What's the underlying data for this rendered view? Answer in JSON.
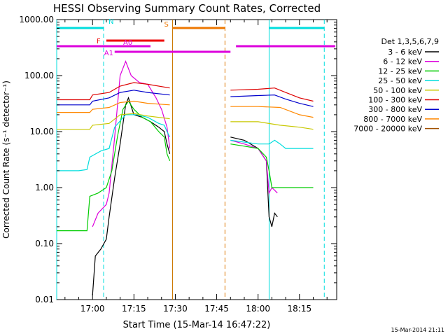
{
  "chart_data": {
    "type": "line",
    "title": "HESSI Observing Summary Count Rates, Corrected",
    "xlabel": "Start Time (15-Mar-14 16:47:22)",
    "ylabel": "Corrected Count Rate (s⁻¹ detector⁻¹)",
    "timestamp": "15-Mar-2014 21:11",
    "x_unit": "minutes of day",
    "xlim": [
      "16:47",
      "18:28"
    ],
    "ylim": [
      0.01,
      1000
    ],
    "y_scale": "log",
    "x_ticks": [
      {
        "t": "17:00",
        "label": "17:00"
      },
      {
        "t": "17:15",
        "label": "17:15"
      },
      {
        "t": "17:30",
        "label": "17:30"
      },
      {
        "t": "17:45",
        "label": "17:45"
      },
      {
        "t": "18:00",
        "label": "18:00"
      },
      {
        "t": "18:15",
        "label": "18:15"
      }
    ],
    "y_ticks": [
      {
        "v": 0.01,
        "label": "0.01"
      },
      {
        "v": 0.1,
        "label": "0.10"
      },
      {
        "v": 1,
        "label": "1.00"
      },
      {
        "v": 10,
        "label": "10.00"
      },
      {
        "v": 100,
        "label": "100.00"
      },
      {
        "v": 1000,
        "label": "1000.00"
      }
    ],
    "legend_title": "Det 1,3,5,6,7,9",
    "legend_position": "right",
    "series": [
      {
        "name": "3 - 6 keV",
        "color": "#000000",
        "points": [
          [
            "17:00",
            0.012
          ],
          [
            "17:01",
            0.06
          ],
          [
            "17:03",
            0.08
          ],
          [
            "17:05",
            0.12
          ],
          [
            "17:06",
            0.3
          ],
          [
            "17:08",
            1.5
          ],
          [
            "17:10",
            6
          ],
          [
            "17:12",
            30
          ],
          [
            "17:13",
            40
          ],
          [
            "17:15",
            20
          ],
          [
            "17:18",
            18
          ],
          [
            "17:21",
            15
          ],
          [
            "17:24",
            12
          ],
          [
            "17:26",
            10
          ],
          [
            "17:27",
            6
          ],
          [
            "17:28",
            4
          ]
        ],
        "points2": [
          [
            "17:50",
            8
          ],
          [
            "17:55",
            7
          ],
          [
            "18:00",
            5
          ],
          [
            "18:03",
            3
          ],
          [
            "18:04",
            0.3
          ],
          [
            "18:05",
            0.2
          ],
          [
            "18:06",
            0.35
          ],
          [
            "18:07",
            0.3
          ]
        ]
      },
      {
        "name": "6 - 12 keV",
        "color": "#dd00dd",
        "points": [
          [
            "17:00",
            0.2
          ],
          [
            "17:02",
            0.35
          ],
          [
            "17:05",
            0.5
          ],
          [
            "17:06",
            0.8
          ],
          [
            "17:08",
            8
          ],
          [
            "17:10",
            100
          ],
          [
            "17:12",
            180
          ],
          [
            "17:14",
            100
          ],
          [
            "17:17",
            75
          ],
          [
            "17:20",
            70
          ],
          [
            "17:23",
            40
          ],
          [
            "17:25",
            25
          ],
          [
            "17:27",
            12
          ],
          [
            "17:28",
            5
          ]
        ],
        "points2": [
          [
            "17:50",
            7
          ],
          [
            "17:55",
            6
          ],
          [
            "18:00",
            5
          ],
          [
            "18:03",
            3
          ],
          [
            "18:04",
            0.8
          ],
          [
            "18:05",
            1
          ],
          [
            "18:06",
            0.9
          ],
          [
            "18:07",
            0.8
          ]
        ]
      },
      {
        "name": "12 - 25 keV",
        "color": "#00cc00",
        "points": [
          [
            "16:47",
            0.17
          ],
          [
            "16:58",
            0.17
          ],
          [
            "16:59",
            0.7
          ],
          [
            "17:02",
            0.8
          ],
          [
            "17:05",
            1
          ],
          [
            "17:07",
            2
          ],
          [
            "17:09",
            8
          ],
          [
            "17:11",
            25
          ],
          [
            "17:13",
            35
          ],
          [
            "17:15",
            25
          ],
          [
            "17:18",
            18
          ],
          [
            "17:21",
            15
          ],
          [
            "17:24",
            10
          ],
          [
            "17:26",
            8
          ],
          [
            "17:27",
            4
          ],
          [
            "17:28",
            3
          ]
        ],
        "points2": [
          [
            "17:50",
            6
          ],
          [
            "17:55",
            5.5
          ],
          [
            "18:00",
            5
          ],
          [
            "18:03",
            3.5
          ],
          [
            "18:04",
            2
          ],
          [
            "18:05",
            1
          ],
          [
            "18:08",
            1
          ],
          [
            "18:15",
            1
          ],
          [
            "18:20",
            1
          ]
        ]
      },
      {
        "name": "25 - 50 keV",
        "color": "#00dddd",
        "points": [
          [
            "16:47",
            2
          ],
          [
            "16:55",
            2
          ],
          [
            "16:58",
            2.1
          ],
          [
            "16:59",
            3.5
          ],
          [
            "17:03",
            4.5
          ],
          [
            "17:06",
            5
          ],
          [
            "17:08",
            12
          ],
          [
            "17:12",
            20
          ],
          [
            "17:16",
            20
          ],
          [
            "17:20",
            18
          ],
          [
            "17:24",
            14
          ],
          [
            "17:26",
            13
          ],
          [
            "17:27",
            10
          ],
          [
            "17:28",
            8
          ]
        ],
        "points2": [
          [
            "17:50",
            7
          ],
          [
            "17:55",
            6.5
          ],
          [
            "18:00",
            6
          ],
          [
            "18:04",
            6
          ],
          [
            "18:06",
            7
          ],
          [
            "18:08",
            6
          ],
          [
            "18:10",
            5
          ],
          [
            "18:15",
            5
          ],
          [
            "18:20",
            5
          ]
        ]
      },
      {
        "name": "50 - 100 keV",
        "color": "#c8c800",
        "points": [
          [
            "16:47",
            11
          ],
          [
            "16:59",
            11
          ],
          [
            "17:00",
            13
          ],
          [
            "17:06",
            14
          ],
          [
            "17:10",
            20
          ],
          [
            "17:15",
            21
          ],
          [
            "17:20",
            19
          ],
          [
            "17:28",
            17
          ]
        ],
        "points2": [
          [
            "17:50",
            15
          ],
          [
            "18:00",
            15
          ],
          [
            "18:08",
            13
          ],
          [
            "18:15",
            12
          ],
          [
            "18:20",
            11
          ]
        ]
      },
      {
        "name": "100 - 300 keV",
        "color": "#dd0000",
        "points": [
          [
            "16:47",
            37
          ],
          [
            "16:59",
            37
          ],
          [
            "17:00",
            45
          ],
          [
            "17:06",
            50
          ],
          [
            "17:10",
            65
          ],
          [
            "17:15",
            75
          ],
          [
            "17:20",
            70
          ],
          [
            "17:28",
            60
          ]
        ],
        "points2": [
          [
            "17:50",
            55
          ],
          [
            "18:00",
            57
          ],
          [
            "18:06",
            60
          ],
          [
            "18:10",
            50
          ],
          [
            "18:15",
            40
          ],
          [
            "18:20",
            35
          ]
        ]
      },
      {
        "name": "300 - 800 keV",
        "color": "#0000cc",
        "points": [
          [
            "16:47",
            30
          ],
          [
            "16:59",
            30
          ],
          [
            "17:00",
            35
          ],
          [
            "17:06",
            40
          ],
          [
            "17:10",
            50
          ],
          [
            "17:15",
            55
          ],
          [
            "17:20",
            50
          ],
          [
            "17:28",
            45
          ]
        ],
        "points2": [
          [
            "17:50",
            42
          ],
          [
            "18:00",
            44
          ],
          [
            "18:06",
            45
          ],
          [
            "18:10",
            38
          ],
          [
            "18:15",
            32
          ],
          [
            "18:20",
            28
          ]
        ]
      },
      {
        "name": "800 - 7000 keV",
        "color": "#ff8800",
        "points": [
          [
            "16:47",
            22
          ],
          [
            "16:59",
            22
          ],
          [
            "17:00",
            25
          ],
          [
            "17:06",
            27
          ],
          [
            "17:10",
            33
          ],
          [
            "17:15",
            35
          ],
          [
            "17:20",
            32
          ],
          [
            "17:28",
            30
          ]
        ],
        "points2": [
          [
            "17:50",
            28
          ],
          [
            "18:00",
            28
          ],
          [
            "18:08",
            27
          ],
          [
            "18:15",
            20
          ],
          [
            "18:20",
            18
          ]
        ]
      },
      {
        "name": "7000 - 20000 keV",
        "color": "#a05000",
        "points": [],
        "points2": []
      }
    ],
    "vertical_markers": [
      {
        "t": "16:47",
        "color": "#00dddd",
        "style": "solid"
      },
      {
        "t": "17:04",
        "color": "#00dddd",
        "style": "dashed"
      },
      {
        "t": "17:29",
        "color": "#cc7700",
        "style": "solid"
      },
      {
        "t": "17:48",
        "color": "#dd7700",
        "style": "dashed"
      },
      {
        "t": "18:04",
        "color": "#00dddd",
        "style": "solid"
      },
      {
        "t": "18:24",
        "color": "#00dddd",
        "style": "dashed"
      }
    ],
    "flag_bars": [
      {
        "label": "N",
        "color": "#00dddd",
        "level": "top",
        "segments": [
          [
            "16:47",
            "17:04"
          ],
          [
            "18:04",
            "18:24"
          ]
        ]
      },
      {
        "label": "S",
        "color": "#ee7700",
        "level": "top",
        "segments": [
          [
            "17:29",
            "17:48"
          ]
        ]
      },
      {
        "label": "F",
        "color": "#ee0000",
        "level": "mid",
        "segments": [
          [
            "17:05",
            "17:26"
          ]
        ]
      },
      {
        "label": "A0",
        "color": "#dd00dd",
        "level": "low",
        "segments": [
          [
            "16:47",
            "17:21"
          ],
          [
            "17:52",
            "18:28"
          ]
        ]
      },
      {
        "label": "A1",
        "color": "#dd00dd",
        "level": "lower",
        "segments": [
          [
            "17:08",
            "17:50"
          ]
        ]
      }
    ],
    "grid": false
  }
}
